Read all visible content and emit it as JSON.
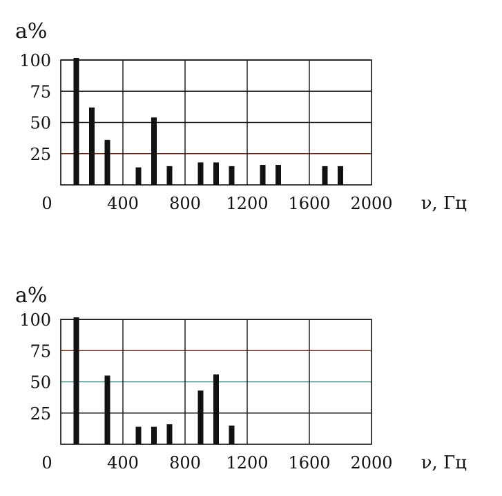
{
  "chart_data": [
    {
      "type": "bar",
      "ylabel": "a%",
      "xlabel": "ν, Гц",
      "xlim": [
        0,
        2000
      ],
      "ylim": [
        0,
        100
      ],
      "x_ticks": [
        "0",
        "400",
        "800",
        "1200",
        "1600",
        "2000"
      ],
      "y_ticks": [
        "100",
        "75",
        "50",
        "25"
      ],
      "grid": true,
      "x": [
        100,
        200,
        300,
        500,
        600,
        700,
        900,
        1000,
        1100,
        1300,
        1400,
        1700,
        1800
      ],
      "values": [
        100,
        62,
        36,
        14,
        54,
        15,
        18,
        18,
        15,
        16,
        16,
        15,
        15
      ]
    },
    {
      "type": "bar",
      "ylabel": "a%",
      "xlabel": "ν, Гц",
      "xlim": [
        0,
        2000
      ],
      "ylim": [
        0,
        100
      ],
      "x_ticks": [
        "0",
        "400",
        "800",
        "1200",
        "1600",
        "2000"
      ],
      "y_ticks": [
        "100",
        "75",
        "50",
        "25"
      ],
      "grid": true,
      "x": [
        100,
        300,
        500,
        600,
        700,
        900,
        1000,
        1100
      ],
      "values": [
        100,
        55,
        14,
        14,
        16,
        43,
        56,
        15
      ]
    }
  ],
  "colors": {
    "grid": "#111111",
    "bar": "#111111",
    "highlight_line_1": "#6b2a1e",
    "highlight_line_2": "#3a8a80"
  }
}
